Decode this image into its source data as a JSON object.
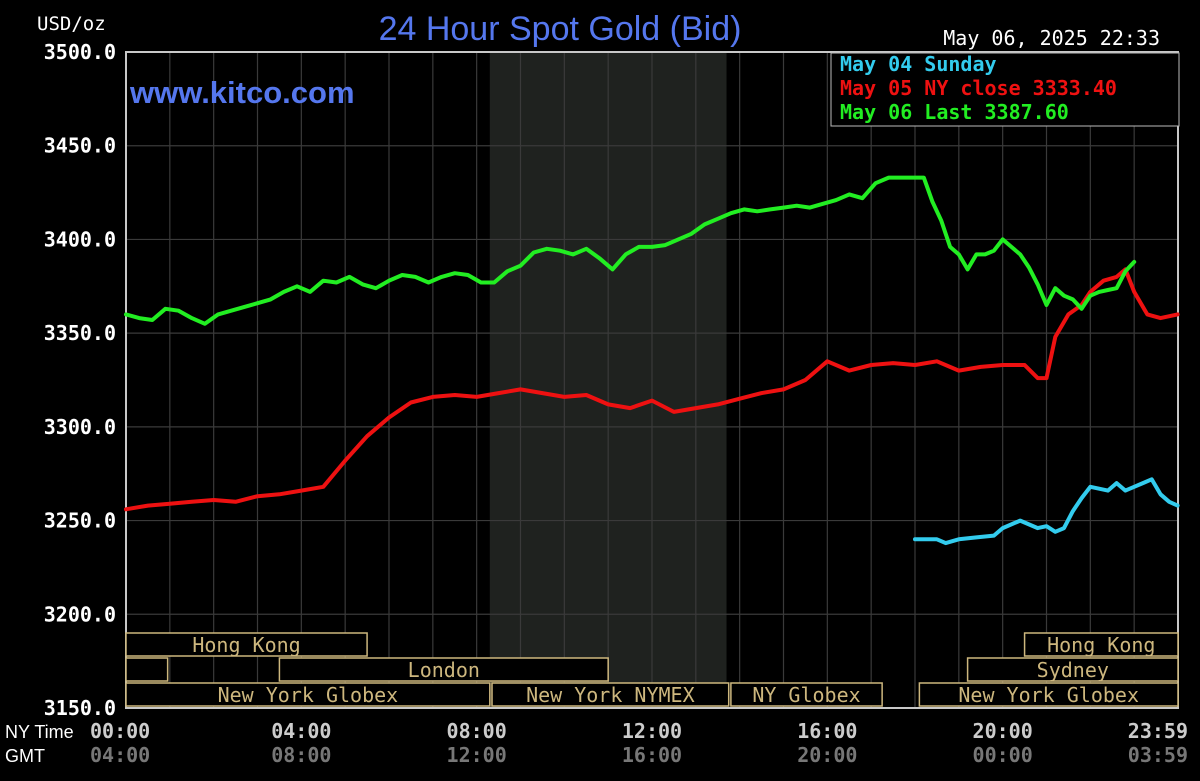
{
  "header": {
    "unit": "USD/oz",
    "title": "24 Hour Spot Gold (Bid)",
    "datetime": "May 06, 2025 22:33",
    "website": "www.kitco.com"
  },
  "legend": [
    {
      "label": "May 04 Sunday",
      "color": "#33ccee"
    },
    {
      "label": "May 05 NY close 3333.40",
      "color": "#ee1111"
    },
    {
      "label": "May 06 Last 3387.60",
      "color": "#22ee22"
    }
  ],
  "colors": {
    "background": "#000000",
    "plot_border": "#c8c8c8",
    "grid": "#3a3a3a",
    "shade": "#1f221f",
    "text": "#ffffff",
    "axis_label": "#cccccc",
    "gmt_label": "#777777",
    "title": "#5577ee",
    "session_border": "#cdb77e",
    "session_text": "#cdb77e"
  },
  "axis": {
    "nytime_label": "NY Time",
    "gmt_label": "GMT",
    "ny_ticks": [
      "00:00",
      "04:00",
      "08:00",
      "12:00",
      "16:00",
      "20:00",
      "23:59"
    ],
    "gmt_ticks": [
      "04:00",
      "08:00",
      "12:00",
      "16:00",
      "20:00",
      "00:00",
      "03:59"
    ]
  },
  "sessions": [
    {
      "label": "Hong Kong",
      "start": 0.0,
      "end": 5.5
    },
    {
      "label": "",
      "start": 0.0,
      "end": 0.95
    },
    {
      "label": "London",
      "start": 3.5,
      "end": 11.0
    },
    {
      "label": "New York Globex",
      "start": 0.0,
      "end": 8.3
    },
    {
      "label": "New York NYMEX",
      "start": 8.35,
      "end": 13.75
    },
    {
      "label": "NY Globex",
      "start": 13.8,
      "end": 17.25
    },
    {
      "label": "Hong Kong",
      "start": 20.5,
      "end": 24.0
    },
    {
      "label": "Sydney",
      "start": 19.2,
      "end": 24.0
    },
    {
      "label": "New York Globex",
      "start": 18.1,
      "end": 24.0
    }
  ],
  "chart_data": {
    "type": "line",
    "xlabel": "NY Time",
    "ylabel": "USD/oz",
    "xlim": [
      0,
      24
    ],
    "ylim": [
      3150,
      3500
    ],
    "yticks": [
      "3500.0",
      "3450.0",
      "3400.0",
      "3350.0",
      "3300.0",
      "3250.0",
      "3200.0",
      "3150.0"
    ],
    "shaded_x_range": [
      8.3,
      13.7
    ],
    "grid": true,
    "legend_position": "top-right",
    "series": [
      {
        "name": "May 04 Sunday",
        "color": "#33ccee",
        "x": [
          18.0,
          18.5,
          18.7,
          19.0,
          19.4,
          19.8,
          20.0,
          20.4,
          20.8,
          21.0,
          21.2,
          21.4,
          21.6,
          21.8,
          22.0,
          22.2,
          22.4,
          22.6,
          22.8,
          23.0,
          23.2,
          23.4,
          23.6,
          23.8,
          23.99
        ],
        "y": [
          3240,
          3240,
          3238,
          3240,
          3241,
          3242,
          3246,
          3250,
          3246,
          3247,
          3244,
          3246,
          3255,
          3262,
          3268,
          3267,
          3266,
          3270,
          3266,
          3268,
          3270,
          3272,
          3264,
          3260,
          3258
        ]
      },
      {
        "name": "May 05 NY close 3333.40",
        "color": "#ee1111",
        "x": [
          0.0,
          0.5,
          1.0,
          1.5,
          2.0,
          2.5,
          3.0,
          3.5,
          4.0,
          4.5,
          5.0,
          5.5,
          6.0,
          6.5,
          7.0,
          7.5,
          8.0,
          8.5,
          9.0,
          9.5,
          10.0,
          10.5,
          11.0,
          11.5,
          12.0,
          12.5,
          13.0,
          13.5,
          14.0,
          14.5,
          15.0,
          15.5,
          16.0,
          16.5,
          17.0,
          17.5,
          18.0,
          18.5,
          19.0,
          19.5,
          20.0,
          20.5,
          20.8,
          21.0,
          21.2,
          21.5,
          21.8,
          22.0,
          22.3,
          22.6,
          22.8,
          23.0,
          23.3,
          23.6,
          23.99
        ],
        "y": [
          3256,
          3258,
          3259,
          3260,
          3261,
          3260,
          3263,
          3264,
          3266,
          3268,
          3282,
          3295,
          3305,
          3313,
          3316,
          3317,
          3316,
          3318,
          3320,
          3318,
          3316,
          3317,
          3312,
          3310,
          3314,
          3308,
          3310,
          3312,
          3315,
          3318,
          3320,
          3325,
          3335,
          3330,
          3333,
          3334,
          3333,
          3335,
          3330,
          3332,
          3333,
          3333,
          3326,
          3326,
          3348,
          3360,
          3365,
          3372,
          3378,
          3380,
          3384,
          3372,
          3360,
          3358,
          3360
        ]
      },
      {
        "name": "May 06 Last 3387.60",
        "color": "#22ee22",
        "x": [
          0.0,
          0.3,
          0.6,
          0.9,
          1.2,
          1.5,
          1.8,
          2.1,
          2.4,
          2.7,
          3.0,
          3.3,
          3.6,
          3.9,
          4.2,
          4.5,
          4.8,
          5.1,
          5.4,
          5.7,
          6.0,
          6.3,
          6.6,
          6.9,
          7.2,
          7.5,
          7.8,
          8.1,
          8.4,
          8.7,
          9.0,
          9.3,
          9.6,
          9.9,
          10.2,
          10.5,
          10.8,
          11.1,
          11.4,
          11.7,
          12.0,
          12.3,
          12.6,
          12.9,
          13.2,
          13.5,
          13.8,
          14.1,
          14.4,
          14.7,
          15.0,
          15.3,
          15.6,
          15.9,
          16.2,
          16.5,
          16.8,
          17.1,
          17.4,
          17.7,
          18.0,
          18.2,
          18.4,
          18.6,
          18.8,
          19.0,
          19.2,
          19.4,
          19.6,
          19.8,
          20.0,
          20.2,
          20.4,
          20.6,
          20.8,
          21.0,
          21.2,
          21.4,
          21.6,
          21.8,
          22.0,
          22.2,
          22.4,
          22.6,
          22.8,
          23.0
        ],
        "y": [
          3360,
          3358,
          3357,
          3363,
          3362,
          3358,
          3355,
          3360,
          3362,
          3364,
          3366,
          3368,
          3372,
          3375,
          3372,
          3378,
          3377,
          3380,
          3376,
          3374,
          3378,
          3381,
          3380,
          3377,
          3380,
          3382,
          3381,
          3377,
          3377,
          3383,
          3386,
          3393,
          3395,
          3394,
          3392,
          3395,
          3390,
          3384,
          3392,
          3396,
          3396,
          3397,
          3400,
          3403,
          3408,
          3411,
          3414,
          3416,
          3415,
          3416,
          3417,
          3418,
          3417,
          3419,
          3421,
          3424,
          3422,
          3430,
          3433,
          3433,
          3433,
          3433,
          3420,
          3410,
          3396,
          3392,
          3384,
          3392,
          3392,
          3394,
          3400,
          3396,
          3392,
          3385,
          3376,
          3365,
          3374,
          3370,
          3368,
          3363,
          3370,
          3372,
          3373,
          3374,
          3383,
          3388
        ]
      }
    ]
  }
}
